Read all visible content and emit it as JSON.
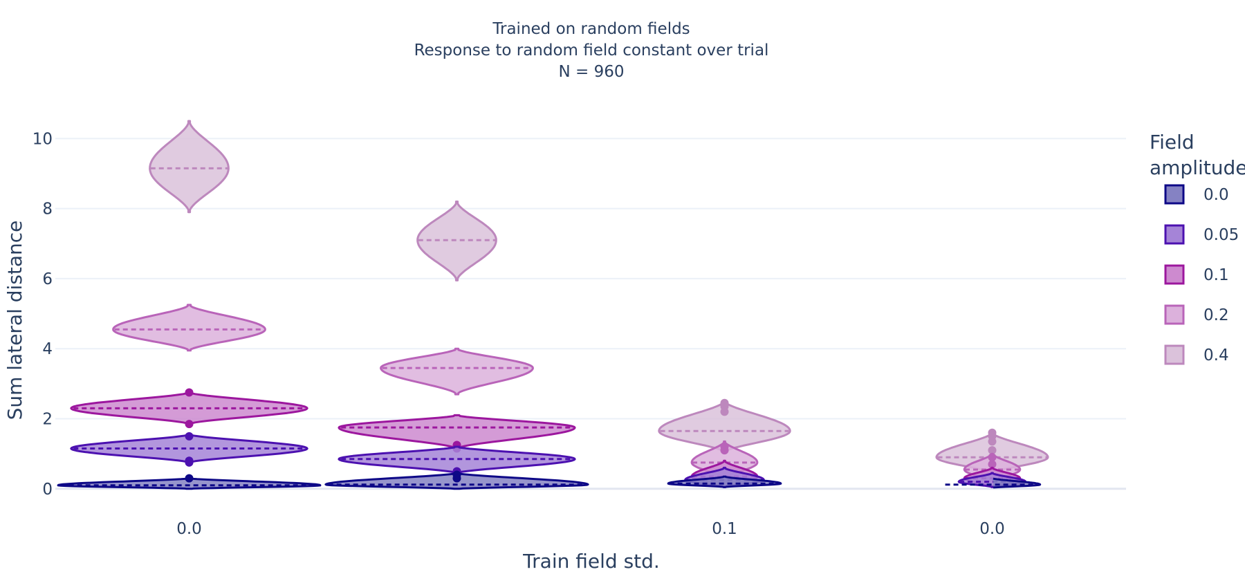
{
  "chart_data": {
    "type": "violin",
    "title_lines": [
      "Trained on random fields",
      "Response to random field constant over trial",
      "N = 960"
    ],
    "xlabel": "Train field std.",
    "ylabel": "Sum lateral distance",
    "x_tick_labels": [
      "0.0",
      "0.1",
      "0.0"
    ],
    "categories": [
      "0.0",
      "",
      "0.1",
      "0.0"
    ],
    "ylim": [
      -0.3,
      10.5
    ],
    "yticks": [
      0,
      2,
      4,
      6,
      8,
      10
    ],
    "grid": true,
    "legend": {
      "title_lines": [
        "Field",
        "amplitude"
      ],
      "placement": "right",
      "entries": [
        "0.0",
        "0.05",
        "0.1",
        "0.2",
        "0.4"
      ]
    },
    "series": [
      {
        "name": "0.0",
        "color": "#0d0887",
        "fill": "#8582c3",
        "groups": [
          {
            "median": 0.1,
            "min": 0.0,
            "max": 0.3,
            "outliers": [
              0.3
            ]
          },
          {
            "median": 0.12,
            "min": 0.0,
            "max": 0.45,
            "outliers": [
              0.3,
              0.4
            ]
          },
          {
            "median": 0.15,
            "min": 0.05,
            "max": 0.35,
            "outliers": []
          },
          {
            "median": 0.12,
            "min": 0.03,
            "max": 0.3,
            "outliers": []
          }
        ]
      },
      {
        "name": "0.05",
        "color": "#4c11b0",
        "fill": "#a584d7",
        "groups": [
          {
            "median": 1.15,
            "min": 0.75,
            "max": 1.55,
            "outliers": [
              0.75,
              0.8,
              1.5
            ]
          },
          {
            "median": 0.85,
            "min": 0.45,
            "max": 1.2,
            "outliers": [
              0.4,
              0.5
            ]
          },
          {
            "median": 0.25,
            "min": 0.05,
            "max": 0.6,
            "outliers": []
          },
          {
            "median": 0.2,
            "min": 0.05,
            "max": 0.45,
            "outliers": []
          }
        ]
      },
      {
        "name": "0.1",
        "color": "#9c179e",
        "fill": "#cd8acf",
        "groups": [
          {
            "median": 2.3,
            "min": 1.85,
            "max": 2.75,
            "outliers": [
              1.85,
              2.75
            ]
          },
          {
            "median": 1.75,
            "min": 1.15,
            "max": 2.1,
            "outliers": [
              1.15,
              1.25
            ]
          },
          {
            "median": 0.35,
            "min": 0.05,
            "max": 0.8,
            "outliers": []
          },
          {
            "median": 0.3,
            "min": 0.05,
            "max": 0.6,
            "outliers": []
          }
        ]
      },
      {
        "name": "0.2",
        "color": "#b964b9",
        "fill": "#dcb1dc",
        "groups": [
          {
            "median": 4.55,
            "min": 3.95,
            "max": 5.25,
            "outliers": []
          },
          {
            "median": 3.45,
            "min": 2.7,
            "max": 4.0,
            "outliers": []
          },
          {
            "median": 0.75,
            "min": 0.3,
            "max": 1.35,
            "outliers": [
              1.1,
              1.2
            ]
          },
          {
            "median": 0.55,
            "min": 0.2,
            "max": 1.0,
            "outliers": [
              0.7,
              0.9
            ]
          }
        ]
      },
      {
        "name": "0.4",
        "color": "#bd88bd",
        "fill": "#dbc2db",
        "groups": [
          {
            "median": 9.15,
            "min": 7.9,
            "max": 10.5,
            "outliers": []
          },
          {
            "median": 7.1,
            "min": 5.95,
            "max": 8.2,
            "outliers": []
          },
          {
            "median": 1.65,
            "min": 1.05,
            "max": 2.5,
            "outliers": [
              2.2,
              2.35,
              2.45
            ]
          },
          {
            "median": 0.9,
            "min": 0.45,
            "max": 1.6,
            "outliers": [
              1.1,
              1.35,
              1.5,
              1.6
            ]
          }
        ]
      }
    ]
  }
}
